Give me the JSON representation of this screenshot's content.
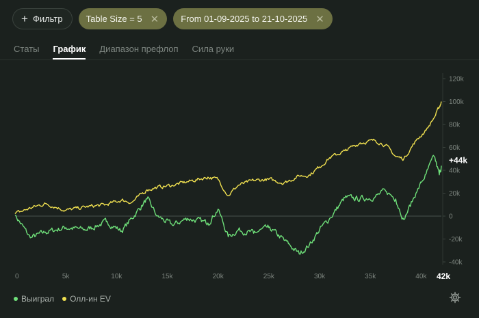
{
  "toolbar": {
    "filter_label": "Фильтр",
    "chips": [
      {
        "label": "Table Size = 5"
      },
      {
        "label": "From 01-09-2025 to 21-10-2025"
      }
    ]
  },
  "tabs": [
    {
      "label": "Статы",
      "active": false
    },
    {
      "label": "График",
      "active": true
    },
    {
      "label": "Диапазон префлоп",
      "active": false
    },
    {
      "label": "Сила руки",
      "active": false
    }
  ],
  "chart_data": {
    "type": "line",
    "x_ticks": [
      "0",
      "5k",
      "10k",
      "15k",
      "20k",
      "25k",
      "30k",
      "35k",
      "40k"
    ],
    "x_max_label": "42k",
    "xlim": [
      0,
      42000
    ],
    "y_ticks": [
      "120k",
      "100k",
      "80k",
      "60k",
      "40k",
      "20k",
      "0",
      "-20k",
      "-40k"
    ],
    "ylim": [
      -40000,
      120000
    ],
    "end_label": "+44k",
    "series": [
      {
        "name": "Выиграл",
        "color": "#6fe07a",
        "x": [
          0,
          1500,
          3000,
          5000,
          7000,
          9000,
          10500,
          11500,
          13000,
          14000,
          15500,
          17000,
          19000,
          20000,
          21000,
          22000,
          23500,
          25000,
          26500,
          28000,
          29000,
          30000,
          31000,
          32500,
          34000,
          35500,
          36500,
          37500,
          38300,
          39500,
          40500,
          41300,
          41800,
          42000
        ],
        "values": [
          1000,
          -19000,
          -14000,
          -10000,
          -12000,
          -5000,
          -13000,
          -2000,
          15000,
          0,
          -8000,
          -2000,
          -6000,
          6000,
          -18000,
          -12000,
          -15000,
          -10000,
          -21000,
          -33000,
          -25000,
          -12000,
          -2000,
          16000,
          15000,
          17000,
          22000,
          15000,
          -3000,
          20000,
          37000,
          52000,
          36000,
          44000
        ]
      },
      {
        "name": "Олл-ин EV",
        "color": "#f0e050",
        "x": [
          0,
          1500,
          3000,
          5000,
          7000,
          9000,
          10500,
          11500,
          13000,
          14000,
          15500,
          17000,
          19000,
          20000,
          21000,
          22000,
          23500,
          25000,
          26500,
          28000,
          29000,
          30000,
          31000,
          32500,
          34000,
          35500,
          36500,
          37500,
          38300,
          39500,
          40500,
          41300,
          41800,
          42000
        ],
        "values": [
          2000,
          7000,
          11000,
          5000,
          8000,
          10000,
          14000,
          12000,
          23000,
          25000,
          27000,
          30000,
          34000,
          32000,
          18000,
          27000,
          31000,
          32000,
          29000,
          35000,
          36000,
          43000,
          51000,
          57000,
          64000,
          66000,
          62000,
          52000,
          50000,
          66000,
          75000,
          86000,
          95000,
          100000
        ]
      }
    ]
  },
  "legend": [
    {
      "label": "Выиграл",
      "color": "#6fe07a"
    },
    {
      "label": "Олл-ин EV",
      "color": "#f0e050"
    }
  ]
}
